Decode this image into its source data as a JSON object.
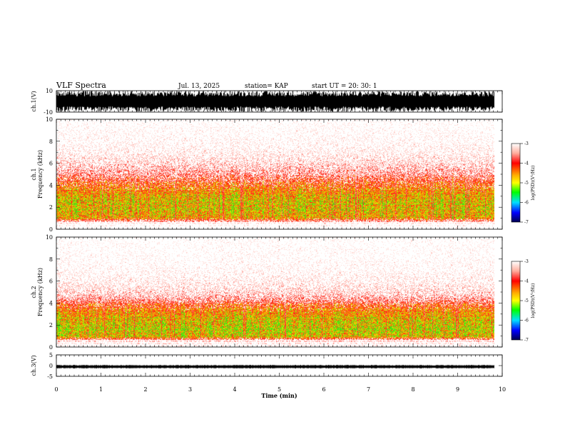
{
  "header": {
    "title": "VLF Spectra",
    "date": "Jul. 13, 2025",
    "station": "station= KAP",
    "start": "start UT =  20: 30: 1"
  },
  "colors": {
    "spectro_low": "#ffffff",
    "spectro_mid": "#ff2a1a",
    "spectro_high": "#e8e000",
    "waveform": "#000000",
    "colorbar": [
      "#ffffff",
      "#ff0000",
      "#ffff00",
      "#00ff00",
      "#00ffff",
      "#0000ff",
      "#000060"
    ]
  },
  "chart_data": [
    {
      "type": "line",
      "name": "ch1-waveform",
      "ylabel": "ch.1(V)",
      "ylim": [
        -10,
        10
      ],
      "yticks": [
        "10",
        "-10"
      ],
      "description_values": {
        "typical_positive_peak": 8,
        "typical_negative_peak": -8
      }
    },
    {
      "type": "heatmap",
      "name": "ch1-spectrogram",
      "ylabel_line1": "ch.1",
      "ylabel_line2": "Frequency (kHz)",
      "ylim": [
        0,
        10
      ],
      "yticks": [
        "0",
        "2",
        "4",
        "6",
        "8",
        "10"
      ],
      "intensity_profile_khz": [
        [
          0,
          0.1
        ],
        [
          0.5,
          0.2
        ],
        [
          1,
          0.85
        ],
        [
          1.5,
          0.9
        ],
        [
          2,
          0.95
        ],
        [
          2.5,
          0.95
        ],
        [
          3,
          0.9
        ],
        [
          3.5,
          0.8
        ],
        [
          4,
          0.7
        ],
        [
          4.5,
          0.6
        ],
        [
          5,
          0.45
        ],
        [
          6,
          0.3
        ],
        [
          7,
          0.2
        ],
        [
          8,
          0.15
        ],
        [
          10,
          0.1
        ]
      ],
      "colorbar": {
        "label": "log(PSD)(V²/Hz)",
        "ticks": [
          "-3",
          "-4",
          "-5",
          "-6",
          "-7"
        ],
        "range": [
          -7,
          -3
        ]
      }
    },
    {
      "type": "heatmap",
      "name": "ch2-spectrogram",
      "ylabel_line1": "ch.2",
      "ylabel_line2": "Frequency (kHz)",
      "ylim": [
        0,
        10
      ],
      "yticks": [
        "0",
        "2",
        "4",
        "6",
        "8",
        "10"
      ],
      "intensity_profile_khz": [
        [
          0,
          0.15
        ],
        [
          0.5,
          0.3
        ],
        [
          1,
          1.0
        ],
        [
          1.5,
          1.05
        ],
        [
          2,
          1.0
        ],
        [
          2.5,
          0.95
        ],
        [
          3,
          0.85
        ],
        [
          3.5,
          0.75
        ],
        [
          4,
          0.6
        ],
        [
          4.5,
          0.4
        ],
        [
          5,
          0.3
        ],
        [
          6,
          0.2
        ],
        [
          7,
          0.15
        ],
        [
          8,
          0.12
        ],
        [
          10,
          0.1
        ]
      ],
      "colorbar": {
        "label": "log(PSD)(V²/Hz)",
        "ticks": [
          "-3",
          "-4",
          "-5",
          "-6",
          "-7"
        ],
        "range": [
          -7,
          -3
        ]
      }
    },
    {
      "type": "line",
      "name": "ch3-waveform",
      "ylabel": "ch.3(V)",
      "ylim": [
        -5,
        5
      ],
      "yticks": [
        "5",
        "0",
        "-5"
      ],
      "description_values": {
        "band_center": -0.5,
        "band_half_width": 0.5
      }
    }
  ],
  "xaxis": {
    "label": "Time (min)",
    "range": [
      0,
      10
    ],
    "ticks": [
      "0",
      "1",
      "2",
      "3",
      "4",
      "5",
      "6",
      "7",
      "8",
      "9",
      "10"
    ],
    "data_end": 9.85
  }
}
